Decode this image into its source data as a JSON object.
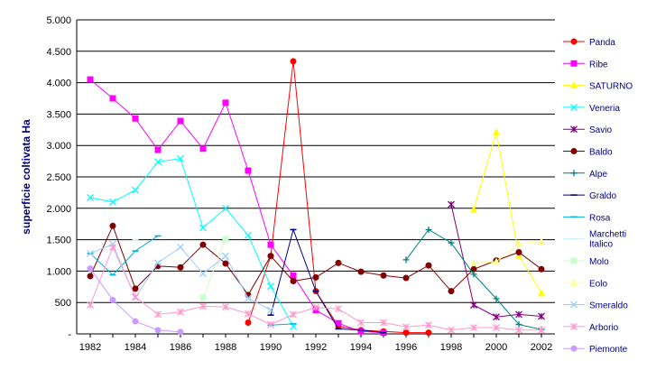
{
  "chart_data": {
    "type": "line",
    "title": "",
    "xlabel": "",
    "ylabel": "superficie coltivata Ha",
    "ylim": [
      0,
      5000
    ],
    "yticks": [
      "-",
      "500",
      "1.000",
      "1.500",
      "2.000",
      "2.500",
      "3.000",
      "3.500",
      "4.000",
      "4.500",
      "5.000"
    ],
    "xticks": [
      "1982",
      "1984",
      "1986",
      "1988",
      "1990",
      "1992",
      "1994",
      "1996",
      "1998",
      "2000",
      "2002"
    ],
    "x": [
      1982,
      1983,
      1984,
      1985,
      1986,
      1987,
      1988,
      1989,
      1990,
      1991,
      1992,
      1993,
      1994,
      1995,
      1996,
      1997,
      1998,
      1999,
      2000,
      2001,
      2002
    ],
    "grid": "horizontal",
    "legend_position": "right",
    "series": [
      {
        "name": "Panda",
        "color": "#ff0000",
        "marker": "circle",
        "values": [
          null,
          null,
          null,
          null,
          null,
          null,
          null,
          180,
          1240,
          4340,
          680,
          120,
          60,
          40,
          20,
          20,
          null,
          null,
          null,
          null,
          null
        ]
      },
      {
        "name": "Ribe",
        "color": "#ff00ff",
        "marker": "square",
        "values": [
          4050,
          3750,
          3430,
          2930,
          3390,
          2950,
          3680,
          2600,
          1420,
          930,
          380,
          170,
          40,
          20,
          null,
          null,
          null,
          null,
          null,
          null,
          null
        ]
      },
      {
        "name": "SATURNO",
        "color": "#ffff00",
        "marker": "triangle",
        "values": [
          null,
          null,
          null,
          null,
          null,
          null,
          null,
          null,
          null,
          null,
          null,
          null,
          null,
          null,
          null,
          null,
          null,
          1980,
          3210,
          1250,
          650
        ]
      },
      {
        "name": "Veneria",
        "color": "#00ffff",
        "marker": "x",
        "values": [
          2170,
          2100,
          2290,
          2740,
          2790,
          1690,
          2000,
          1570,
          760,
          120,
          null,
          null,
          null,
          null,
          null,
          null,
          null,
          null,
          null,
          null,
          null
        ]
      },
      {
        "name": "Savio",
        "color": "#800080",
        "marker": "star",
        "values": [
          null,
          null,
          null,
          null,
          null,
          null,
          null,
          null,
          null,
          null,
          null,
          null,
          null,
          null,
          null,
          null,
          2060,
          460,
          270,
          310,
          280
        ]
      },
      {
        "name": "Baldo",
        "color": "#800000",
        "marker": "circle",
        "values": [
          920,
          1720,
          720,
          1080,
          1060,
          1420,
          1120,
          620,
          1240,
          840,
          900,
          1130,
          990,
          930,
          890,
          1090,
          680,
          1030,
          1170,
          1300,
          1030
        ]
      },
      {
        "name": "Alpe",
        "color": "#008080",
        "marker": "plus",
        "values": [
          null,
          null,
          null,
          null,
          null,
          null,
          null,
          null,
          null,
          null,
          null,
          null,
          null,
          null,
          1180,
          1660,
          1450,
          950,
          560,
          150,
          70
        ]
      },
      {
        "name": "Graldo",
        "color": "#000080",
        "marker": "dash",
        "values": [
          null,
          null,
          null,
          null,
          null,
          null,
          null,
          null,
          300,
          1660,
          680,
          80,
          60,
          20,
          null,
          null,
          null,
          null,
          null,
          null,
          null
        ]
      },
      {
        "name": "Rosa",
        "color": "#00b0e0",
        "marker": "dash",
        "values": [
          1280,
          940,
          1320,
          1560,
          null,
          null,
          null,
          null,
          140,
          160,
          null,
          null,
          null,
          null,
          null,
          null,
          null,
          null,
          null,
          null,
          null
        ]
      },
      {
        "name": "Marchetti Italico",
        "color": "#c8f0ff",
        "marker": "dash",
        "values": [
          null,
          null,
          1500,
          null,
          null,
          null,
          null,
          null,
          null,
          null,
          null,
          null,
          null,
          null,
          null,
          null,
          null,
          null,
          null,
          null,
          null
        ]
      },
      {
        "name": "Molo",
        "color": "#ccffcc",
        "marker": "square",
        "values": [
          null,
          null,
          null,
          null,
          null,
          580,
          1510,
          null,
          null,
          null,
          null,
          null,
          null,
          null,
          null,
          null,
          null,
          null,
          null,
          null,
          null
        ]
      },
      {
        "name": "Eolo",
        "color": "#ffff99",
        "marker": "triangle",
        "values": [
          null,
          null,
          null,
          null,
          null,
          null,
          null,
          null,
          null,
          null,
          null,
          null,
          null,
          null,
          null,
          null,
          null,
          1130,
          1150,
          1440,
          1470
        ]
      },
      {
        "name": "Smeraldo",
        "color": "#99ccff",
        "marker": "x",
        "values": [
          1280,
          1430,
          580,
          1130,
          1380,
          960,
          1240,
          570,
          380,
          null,
          null,
          null,
          null,
          null,
          null,
          null,
          null,
          null,
          null,
          null,
          null
        ]
      },
      {
        "name": "Arborio",
        "color": "#ff99cc",
        "marker": "star",
        "values": [
          460,
          1380,
          590,
          310,
          350,
          440,
          430,
          320,
          150,
          310,
          420,
          400,
          180,
          180,
          110,
          140,
          60,
          100,
          100,
          60,
          60
        ]
      },
      {
        "name": "Piemonte",
        "color": "#cc99ff",
        "marker": "circle",
        "values": [
          1040,
          540,
          200,
          60,
          30,
          null,
          null,
          null,
          null,
          null,
          null,
          null,
          null,
          null,
          null,
          null,
          null,
          null,
          null,
          null,
          null
        ]
      }
    ]
  }
}
